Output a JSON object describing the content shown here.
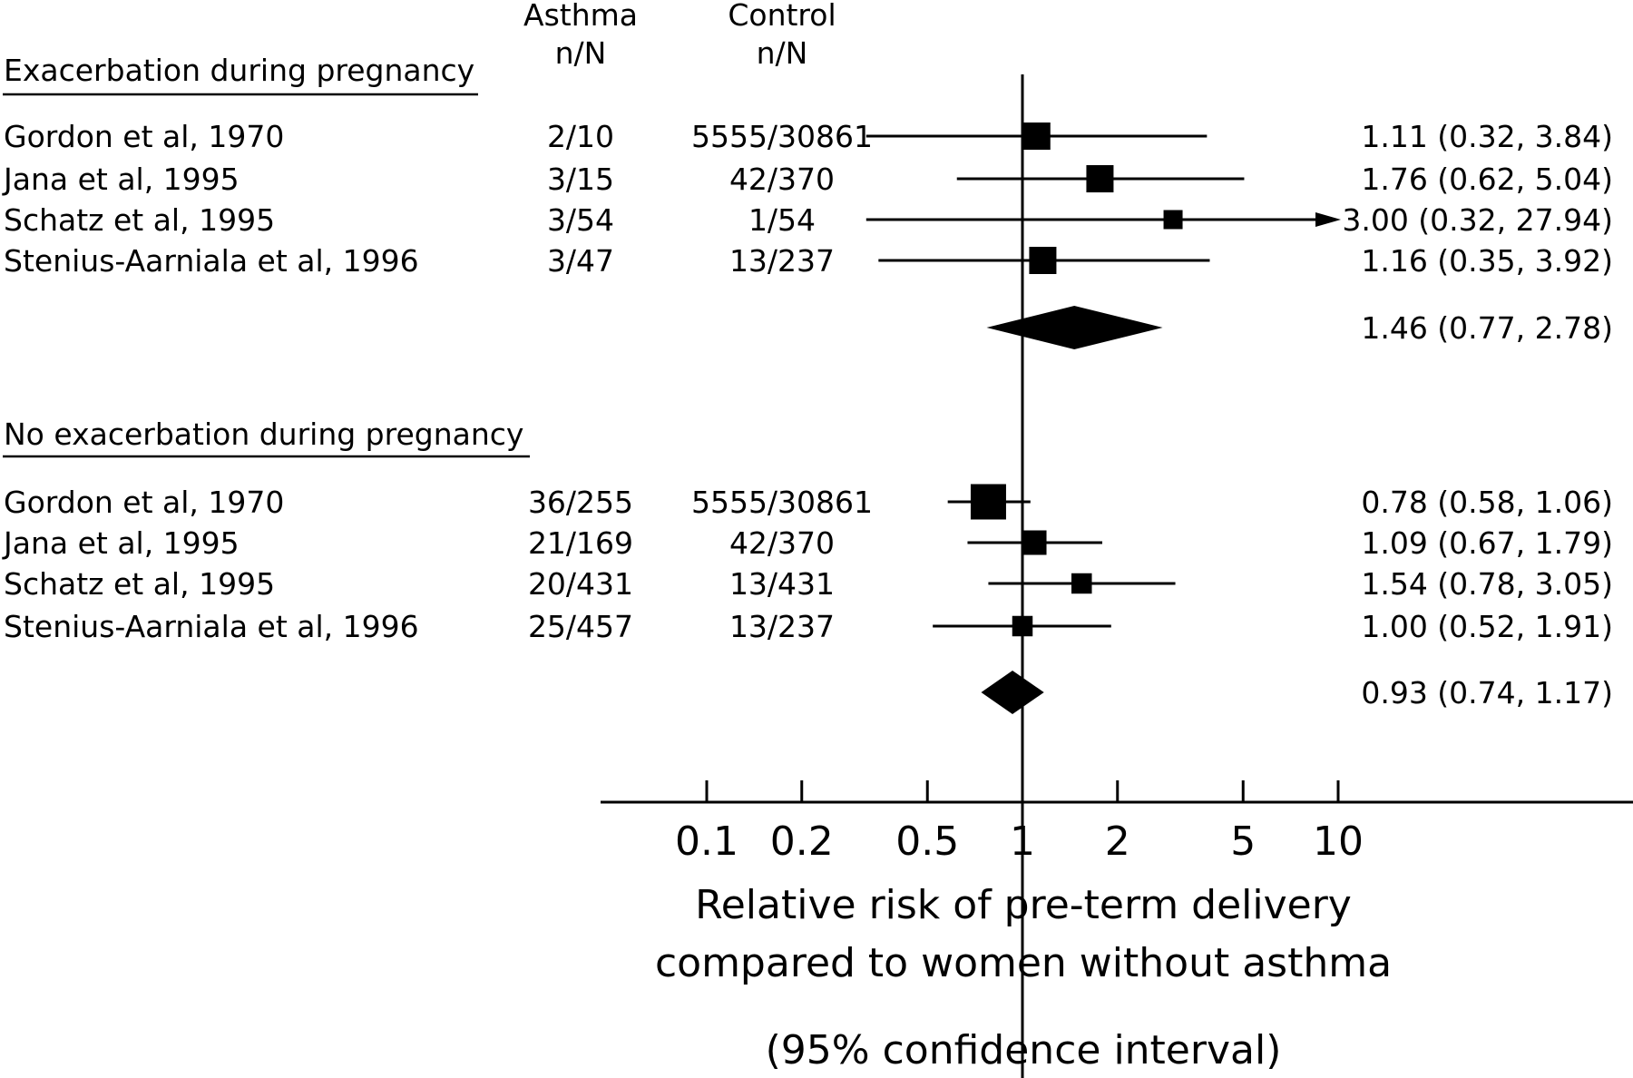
{
  "chart_data": {
    "type": "forest",
    "xscale": "log",
    "xlabel_lines": [
      "Relative risk of pre-term delivery",
      "compared to women without asthma",
      "(95% confidence interval)"
    ],
    "x_ticks": [
      {
        "value": 0.1,
        "label": "0.1"
      },
      {
        "value": 0.2,
        "label": "0.2"
      },
      {
        "value": 0.5,
        "label": "0.5"
      },
      {
        "value": 1,
        "label": "1"
      },
      {
        "value": 2,
        "label": "2"
      },
      {
        "value": 5,
        "label": "5"
      },
      {
        "value": 10,
        "label": "10"
      }
    ],
    "reference_line": 1,
    "column_headers": {
      "asthma": [
        "Asthma",
        "n/N"
      ],
      "control": [
        "Control",
        "n/N"
      ]
    },
    "groups": [
      {
        "title": "Exacerbation during pregnancy",
        "studies": [
          {
            "study": "Gordon et al, 1970",
            "asthma": "2/10",
            "control": "5555/30861",
            "rr": 1.11,
            "lo": 0.32,
            "hi": 3.84,
            "text": "1.11 (0.32, 3.84)",
            "weight": 1.0
          },
          {
            "study": "Jana et al, 1995",
            "asthma": "3/15",
            "control": "42/370",
            "rr": 1.76,
            "lo": 0.62,
            "hi": 5.04,
            "text": "1.76 (0.62, 5.04)",
            "weight": 1.0
          },
          {
            "study": "Schatz et al, 1995",
            "asthma": "3/54",
            "control": "1/54",
            "rr": 3.0,
            "lo": 0.32,
            "hi": 27.94,
            "text": "3.00 (0.32, 27.94)",
            "weight": 0.7,
            "arrow": true
          },
          {
            "study": "Stenius-Aarniala et al, 1996",
            "asthma": "3/47",
            "control": "13/237",
            "rr": 1.16,
            "lo": 0.35,
            "hi": 3.92,
            "text": "1.16 (0.35, 3.92)",
            "weight": 1.0
          }
        ],
        "pooled": {
          "rr": 1.46,
          "lo": 0.77,
          "hi": 2.78,
          "text": "1.46 (0.77, 2.78)"
        }
      },
      {
        "title": "No exacerbation during pregnancy",
        "studies": [
          {
            "study": "Gordon et al, 1970",
            "asthma": "36/255",
            "control": "5555/30861",
            "rr": 0.78,
            "lo": 0.58,
            "hi": 1.06,
            "text": "0.78 (0.58, 1.06)",
            "weight": 1.3
          },
          {
            "study": "Jana et al, 1995",
            "asthma": "21/169",
            "control": "42/370",
            "rr": 1.09,
            "lo": 0.67,
            "hi": 1.79,
            "text": "1.09 (0.67, 1.79)",
            "weight": 0.9
          },
          {
            "study": "Schatz et al, 1995",
            "asthma": "20/431",
            "control": "13/431",
            "rr": 1.54,
            "lo": 0.78,
            "hi": 3.05,
            "text": "1.54 (0.78, 3.05)",
            "weight": 0.75
          },
          {
            "study": "Stenius-Aarniala et al, 1996",
            "asthma": "25/457",
            "control": "13/237",
            "rr": 1.0,
            "lo": 0.52,
            "hi": 1.91,
            "text": "1.00 (0.52, 1.91)",
            "weight": 0.75
          }
        ],
        "pooled": {
          "rr": 0.93,
          "lo": 0.74,
          "hi": 1.17,
          "text": "0.93 (0.74, 1.17)"
        }
      }
    ]
  }
}
